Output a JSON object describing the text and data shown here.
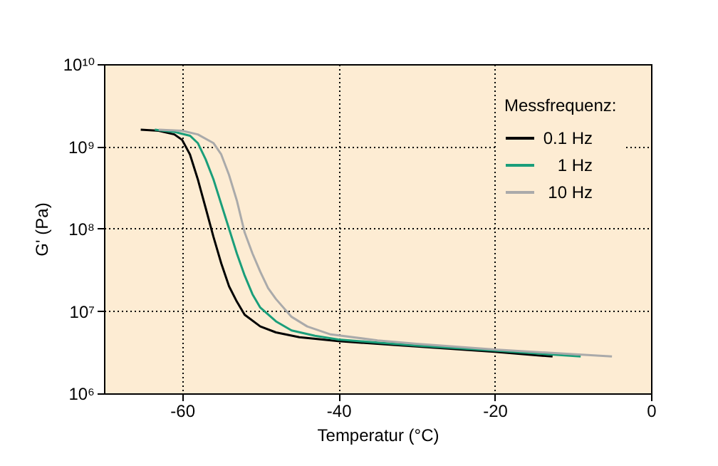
{
  "chart_data": {
    "type": "line",
    "xlabel": "Temperatur (°C)",
    "ylabel": "G' (Pa)",
    "legend_title": "Messfrequenz:",
    "log": "y",
    "grid": true,
    "legend": "top right",
    "line_style": "solid",
    "marker": "none",
    "xlim": [
      -70,
      0
    ],
    "xticks": [
      -60,
      -40,
      -20,
      0
    ],
    "ylim": [
      1000000,
      10000000000
    ],
    "yticks": [
      {
        "value": 1000000,
        "label": "10⁶"
      },
      {
        "value": 10000000,
        "label": "10⁷"
      },
      {
        "value": 100000000,
        "label": "10⁸"
      },
      {
        "value": 1000000000,
        "label": "10⁹"
      },
      {
        "value": 10000000000,
        "label": "10¹⁰"
      }
    ],
    "series": [
      {
        "name": "0.1 Hz",
        "color": "#000000",
        "x": [
          -65.3,
          -63,
          -61,
          -60,
          -59,
          -58,
          -57,
          -56,
          -55,
          -54,
          -53,
          -52,
          -50,
          -48,
          -45,
          -40,
          -30,
          -20,
          -12.6
        ],
        "values": [
          1600000000.0,
          1550000000.0,
          1400000000.0,
          1200000000.0,
          800000000.0,
          400000000.0,
          180000000.0,
          80000000.0,
          38000000.0,
          20000000.0,
          13000000.0,
          9000000.0,
          6500000.0,
          5500000.0,
          4800000.0,
          4300000.0,
          3700000.0,
          3200000.0,
          2800000.0
        ]
      },
      {
        "name": "1 Hz",
        "color": "#1a9e7a",
        "x": [
          -63.5,
          -61,
          -59,
          -58,
          -57,
          -56,
          -55,
          -54,
          -53,
          -52,
          -51,
          -50,
          -48,
          -46,
          -43,
          -40,
          -30,
          -20,
          -9
        ],
        "values": [
          1600000000.0,
          1500000000.0,
          1350000000.0,
          1100000000.0,
          700000000.0,
          400000000.0,
          200000000.0,
          100000000.0,
          50000000.0,
          27000000.0,
          16000000.0,
          11000000.0,
          7500000.0,
          5800000.0,
          5000000.0,
          4500000.0,
          3800000.0,
          3300000.0,
          2800000.0
        ]
      },
      {
        "name": "10 Hz",
        "color": "#aaaaaa",
        "x": [
          -63,
          -60,
          -58,
          -56,
          -55,
          -54,
          -53,
          -52,
          -51,
          -50,
          -49,
          -48,
          -46,
          -44,
          -41,
          -35,
          -30,
          -20,
          -5
        ],
        "values": [
          1600000000.0,
          1550000000.0,
          1400000000.0,
          1100000000.0,
          800000000.0,
          450000000.0,
          220000000.0,
          90000000.0,
          50000000.0,
          30000000.0,
          19000000.0,
          14000000.0,
          8500000.0,
          6500000.0,
          5200000.0,
          4400000.0,
          4000000.0,
          3400000.0,
          2800000.0
        ]
      }
    ]
  }
}
